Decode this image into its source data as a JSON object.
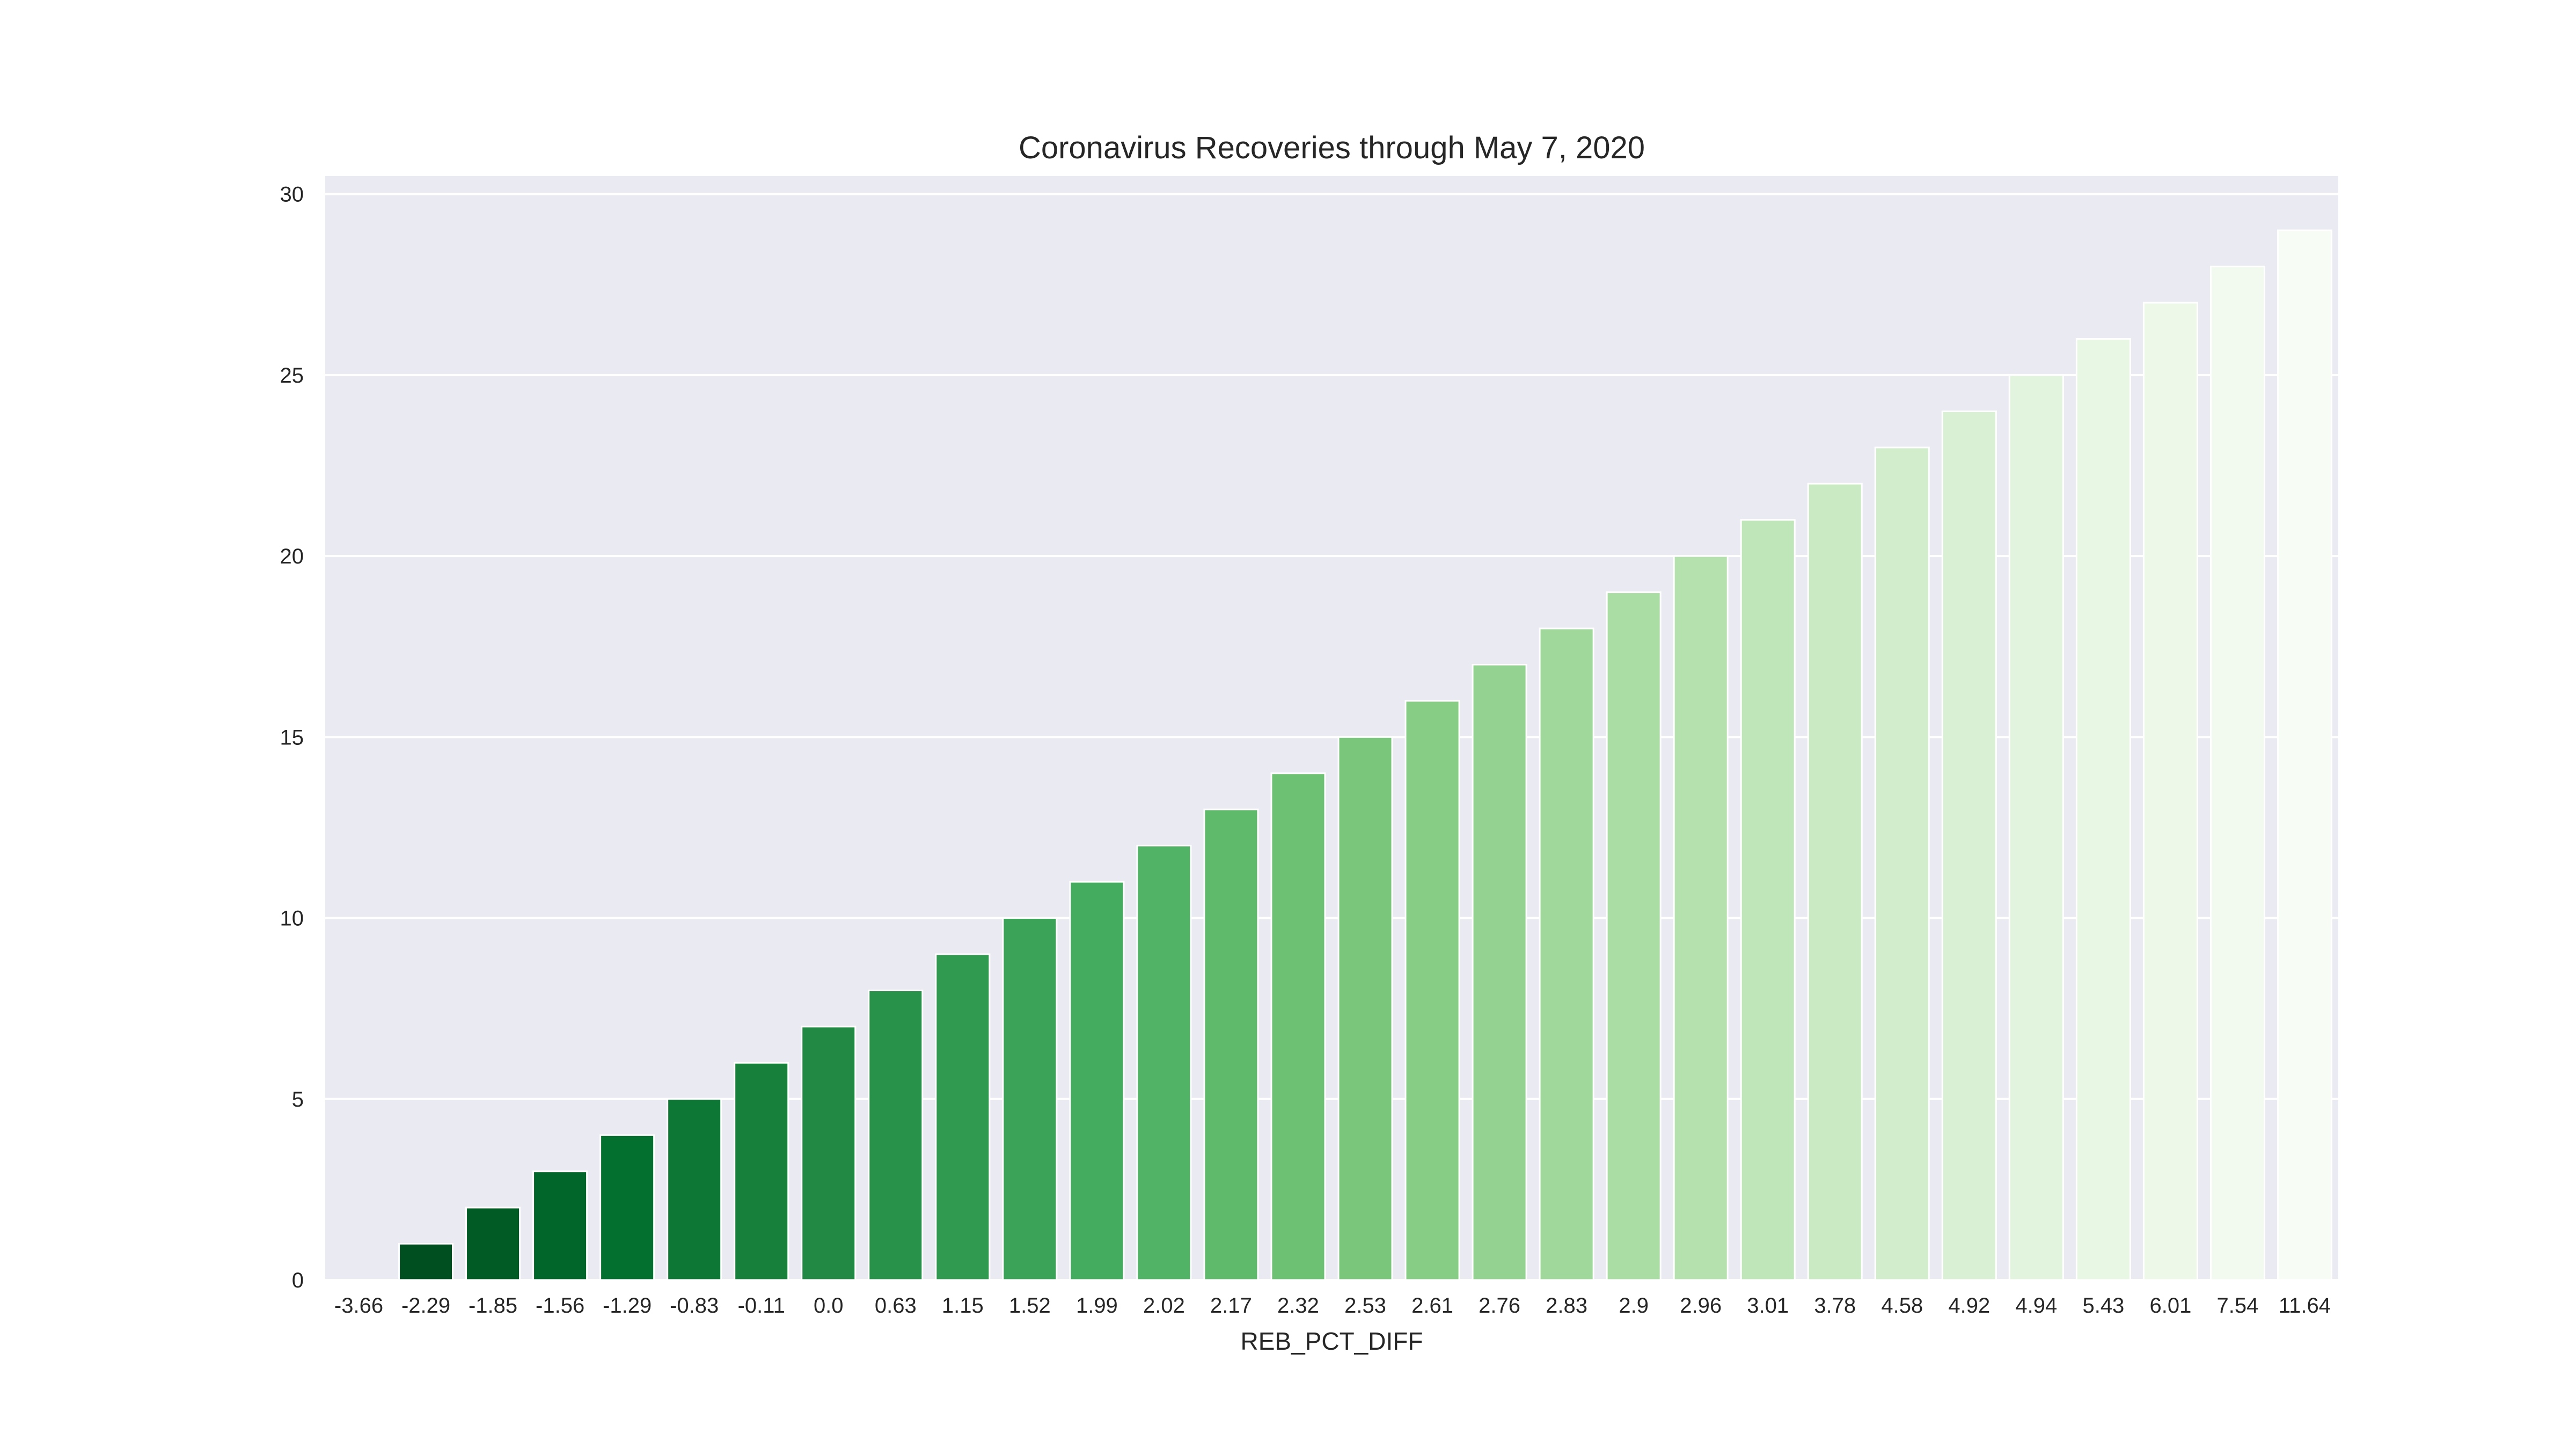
{
  "chart_data": {
    "type": "bar",
    "title": "Coronavirus Recoveries through May 7, 2020",
    "xlabel": "REB_PCT_DIFF",
    "ylabel": "",
    "categories": [
      "-3.66",
      "-2.29",
      "-1.85",
      "-1.56",
      "-1.29",
      "-0.83",
      "-0.11",
      "0.0",
      "0.63",
      "1.15",
      "1.52",
      "1.99",
      "2.02",
      "2.17",
      "2.32",
      "2.53",
      "2.61",
      "2.76",
      "2.83",
      "2.9",
      "2.96",
      "3.01",
      "3.78",
      "4.58",
      "4.92",
      "4.94",
      "5.43",
      "6.01",
      "7.54",
      "11.64"
    ],
    "values": [
      0,
      1,
      2,
      3,
      4,
      5,
      6,
      7,
      8,
      9,
      10,
      11,
      12,
      13,
      14,
      15,
      16,
      17,
      18,
      19,
      20,
      21,
      22,
      23,
      24,
      25,
      26,
      27,
      28,
      29
    ],
    "ylim": [
      0,
      30.5
    ],
    "yticks": [
      0,
      5,
      10,
      15,
      20,
      25,
      30
    ],
    "grid": true,
    "legend": "none",
    "palette": "Greens_r",
    "colors": {
      "dark": "#00441b",
      "light": "#f7fcf5",
      "background": "#eaeaf2",
      "grid": "#ffffff",
      "text": "#262626"
    }
  }
}
